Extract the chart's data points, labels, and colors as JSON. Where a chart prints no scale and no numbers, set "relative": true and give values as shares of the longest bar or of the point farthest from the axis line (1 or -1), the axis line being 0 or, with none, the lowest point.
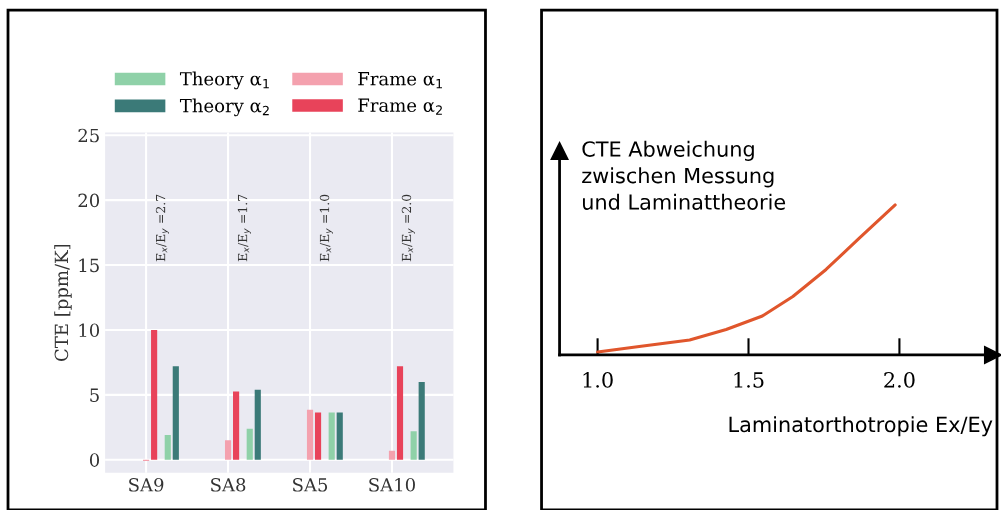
{
  "chart_data": [
    {
      "type": "bar",
      "ylabel": "CTE [ppm/K]",
      "categories": [
        "SA9",
        "SA8",
        "SA5",
        "SA10"
      ],
      "series": [
        {
          "name": "Theory α$_{1}$",
          "color": "#8fd1a8",
          "values": [
            1.9,
            2.4,
            3.65,
            2.2
          ]
        },
        {
          "name": "Theory α$_{2}$",
          "color": "#3b7a78",
          "values": [
            7.2,
            5.4,
            3.65,
            6.0
          ]
        },
        {
          "name": "Frame α$_{1}$",
          "color": "#f4a1ae",
          "values": [
            -0.1,
            1.5,
            3.85,
            0.7
          ]
        },
        {
          "name": "Frame α$_{2}$",
          "color": "#e8435a",
          "values": [
            10.0,
            5.25,
            3.65,
            7.2
          ]
        }
      ],
      "ylim": [
        -1,
        25.2
      ],
      "yticks": [
        0,
        5,
        10,
        15,
        20,
        25
      ],
      "grid": true,
      "legend": "top",
      "annotations": [
        "E$_{x}$/E$_{y}$ =2.7",
        "E$_{x}$/E$_{y}$ =1.7",
        "E$_{x}$/E$_{y}$ =1.0",
        "E$_{x}$/E$_{y}$ =2.0"
      ]
    },
    {
      "type": "line",
      "relative": true,
      "ylabel": "CTE Abweichung\nzwischen Messung\nund Laminattheorie",
      "xlabel": "Laminatorthotropie Ex/Ey",
      "x": [
        1.0,
        1.138,
        1.305,
        1.426,
        1.546,
        1.647,
        1.757,
        1.868,
        1.986
      ],
      "series": [
        {
          "color": "#e0562c",
          "values": [
            0.02,
            0.056,
            0.1,
            0.17,
            0.26,
            0.39,
            0.57,
            0.78,
            1.0
          ]
        }
      ],
      "xlim": [
        0.874,
        2.31
      ],
      "xticks": [
        {
          "value": 1.0,
          "label": "1.0"
        },
        {
          "value": 1.5,
          "label": "1.5"
        },
        {
          "value": 2.0,
          "label": "2.0"
        }
      ],
      "grid": false,
      "legend": false,
      "tick_labels": "x"
    }
  ]
}
